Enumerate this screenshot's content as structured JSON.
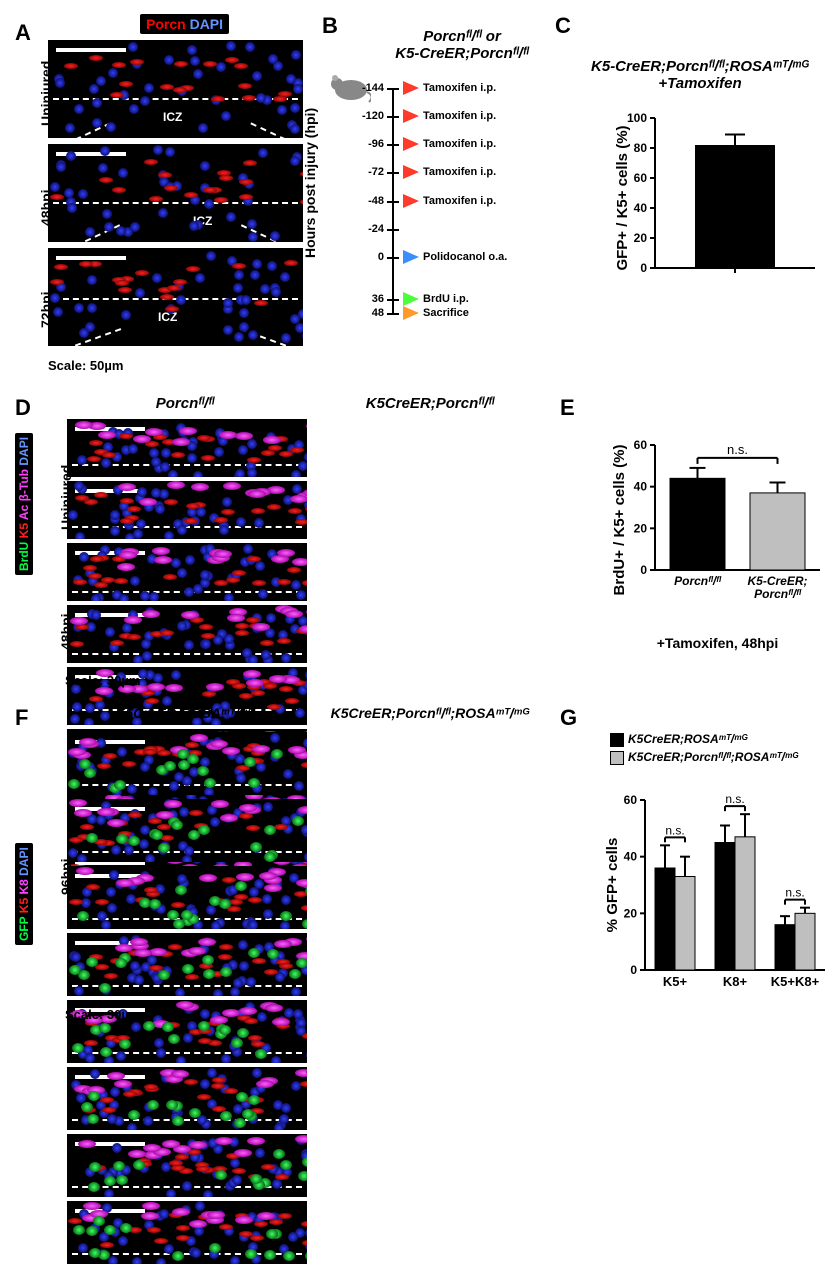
{
  "panels": {
    "A": {
      "label": "A",
      "badge_markers": [
        "Porcn",
        "DAPI"
      ],
      "conditions": [
        "Uninjured",
        "48hpi",
        "72hpi"
      ],
      "icz_text": "ICZ",
      "scale_text": "Scale: 50µm",
      "bg_color": "#000000",
      "dapi_color": "#2838ff",
      "porcn_color": "#ff2020",
      "scalebar_color": "#ffffff",
      "dash_color": "#ffffff"
    },
    "B": {
      "label": "B",
      "title_line1": "Porcnᶠˡ/ᶠˡ or",
      "title_line2": "K5-CreER;Porcnᶠˡ/ᶠˡ",
      "axis_label": "Hours post injury (hpi)",
      "timeline": [
        {
          "h": -144,
          "text": "Tamoxifen i.p.",
          "color": "#ff3a2a"
        },
        {
          "h": -120,
          "text": "Tamoxifen i.p.",
          "color": "#ff3a2a"
        },
        {
          "h": -96,
          "text": "Tamoxifen i.p.",
          "color": "#ff3a2a"
        },
        {
          "h": -72,
          "text": "Tamoxifen i.p.",
          "color": "#ff3a2a"
        },
        {
          "h": -48,
          "text": "Tamoxifen i.p.",
          "color": "#ff3a2a"
        },
        {
          "h": -24,
          "text": "",
          "color": null
        },
        {
          "h": 0,
          "text": "Polidocanol o.a.",
          "color": "#3a8fff"
        },
        {
          "h": 36,
          "text": "BrdU i.p.",
          "color": "#4aff3a"
        },
        {
          "h": 48,
          "text": "Sacrifice",
          "color": "#ff9a2a"
        }
      ]
    },
    "C": {
      "label": "C",
      "title": "K5-CreER;Porcnᶠˡ/ᶠˡ;ROSAᵐᵀ/ᵐᴳ +Tamoxifen",
      "ylabel": "GFP+ / K5+ cells (%)",
      "ylim": [
        0,
        100
      ],
      "ytick_step": 20,
      "bar_value": 82,
      "err": 7,
      "bar_color": "#000000",
      "axis_color": "#000000"
    },
    "D": {
      "label": "D",
      "col_titles": [
        "Porcnᶠˡ/ᶠˡ",
        "K5CreER;Porcnᶠˡ/ᶠˡ"
      ],
      "row_conditions": [
        "Uninjured",
        "48hpi"
      ],
      "badge_markers": [
        "BrdU",
        "K5",
        "Ac β-Tub",
        "DAPI"
      ],
      "badge_colors": [
        "#00ff40",
        "#ff2020",
        "#ff40ff",
        "#6495ff"
      ],
      "scale_text": "Scale: 30µm"
    },
    "E": {
      "label": "E",
      "ylabel": "BrdU+ / K5+ cells (%)",
      "xlabels": [
        "Porcnᶠˡ/ᶠˡ",
        "K5-CreER;\nPorcnᶠˡ/ᶠˡ"
      ],
      "sub": "+Tamoxifen, 48hpi",
      "ylim": [
        0,
        60
      ],
      "ytick_step": 20,
      "values": [
        44,
        37
      ],
      "errs": [
        5,
        5
      ],
      "bar_colors": [
        "#000000",
        "#bfbfbf"
      ],
      "sig": "n.s."
    },
    "F": {
      "label": "F",
      "col_titles": [
        "K5CreER;ROSAᵐᵀ/ᵐᴳ",
        "K5CreER;Porcnᶠˡ/ᶠˡ;ROSAᵐᵀ/ᵐᴳ"
      ],
      "row_condition": "96hpi",
      "badge_markers": [
        "GFP",
        "K5",
        "K8",
        "DAPI"
      ],
      "badge_colors": [
        "#00ff40",
        "#ff2020",
        "#ff40ff",
        "#6495ff"
      ],
      "scale_text": "Scale: 30µm"
    },
    "G": {
      "label": "G",
      "legend": [
        {
          "text": "K5CreER;ROSAᵐᵀ/ᵐᴳ",
          "color": "#000000"
        },
        {
          "text": "K5CreER;Porcnᶠˡ/ᶠˡ;ROSAᵐᵀ/ᵐᴳ",
          "color": "#bfbfbf"
        }
      ],
      "ylabel": "% GFP+ cells",
      "ylim": [
        0,
        60
      ],
      "ytick_step": 20,
      "groups": [
        "K5+",
        "K8+",
        "K5+K8+"
      ],
      "series": [
        {
          "color": "#000000",
          "values": [
            36,
            45,
            16
          ],
          "errs": [
            8,
            6,
            3
          ]
        },
        {
          "color": "#bfbfbf",
          "values": [
            33,
            47,
            20
          ],
          "errs": [
            7,
            8,
            2
          ]
        }
      ],
      "sig": "n.s."
    }
  }
}
